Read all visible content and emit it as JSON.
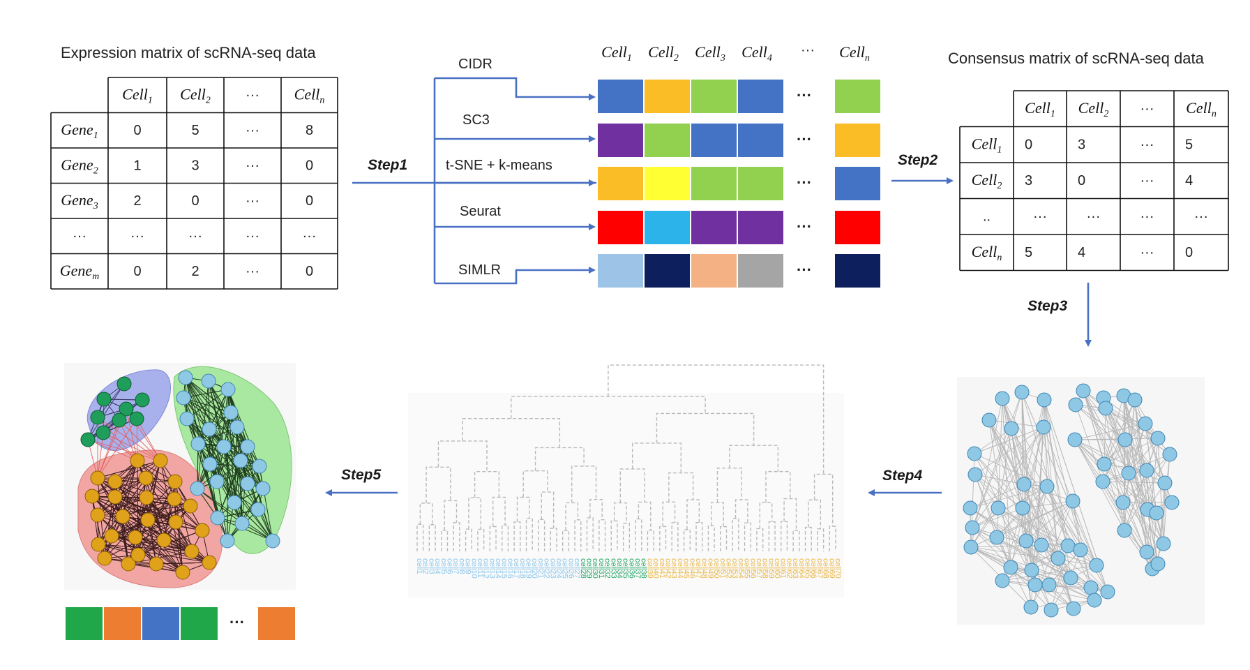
{
  "expression_matrix": {
    "title": "Expression matrix of scRNA-seq data",
    "col_headers": [
      {
        "base": "Cell",
        "sub": "1"
      },
      {
        "base": "Cell",
        "sub": "2"
      },
      {
        "base": "···",
        "sub": ""
      },
      {
        "base": "Cell",
        "sub": "n"
      }
    ],
    "rows": [
      {
        "base": "Gene",
        "sub": "1",
        "values": [
          "0",
          "5",
          "···",
          "8"
        ]
      },
      {
        "base": "Gene",
        "sub": "2",
        "values": [
          "1",
          "3",
          "···",
          "0"
        ]
      },
      {
        "base": "Gene",
        "sub": "3",
        "values": [
          "2",
          "0",
          "···",
          "0"
        ]
      },
      {
        "base": "···",
        "sub": "",
        "values": [
          "···",
          "···",
          "···",
          "···"
        ]
      },
      {
        "base": "Gene",
        "sub": "m",
        "values": [
          "0",
          "2",
          "···",
          "0"
        ]
      }
    ]
  },
  "steps": {
    "step1": "Step1",
    "step2": "Step2",
    "step3": "Step3",
    "step4": "Step4",
    "step5": "Step5"
  },
  "methods": [
    "CIDR",
    "SC3",
    "t-SNE + k-means",
    "Seurat",
    "SIMLR"
  ],
  "clustering_grid": {
    "col_headers": [
      {
        "base": "Cell",
        "sub": "1"
      },
      {
        "base": "Cell",
        "sub": "2"
      },
      {
        "base": "Cell",
        "sub": "3"
      },
      {
        "base": "Cell",
        "sub": "4"
      },
      {
        "base": "···",
        "sub": ""
      },
      {
        "base": "Cell",
        "sub": "n"
      }
    ],
    "ellipsis": "···",
    "rows": [
      [
        "#4472c4",
        "#fbbd25",
        "#92d050",
        "#4472c4",
        "#92d050"
      ],
      [
        "#7030a0",
        "#92d050",
        "#4472c4",
        "#4472c4",
        "#fbbd25"
      ],
      [
        "#fbbd25",
        "#ffff33",
        "#92d050",
        "#92d050",
        "#4472c4"
      ],
      [
        "#ff0000",
        "#2cb3ea",
        "#7030a0",
        "#7030a0",
        "#ff0000"
      ],
      [
        "#9dc3e6",
        "#0d1f5c",
        "#f4b183",
        "#a5a5a5",
        "#0d1f5c"
      ]
    ]
  },
  "consensus_matrix": {
    "title": "Consensus matrix of scRNA-seq data",
    "col_headers": [
      {
        "base": "Cell",
        "sub": "1"
      },
      {
        "base": "Cell",
        "sub": "2"
      },
      {
        "base": "···",
        "sub": ""
      },
      {
        "base": "Cell",
        "sub": "n"
      }
    ],
    "rows": [
      {
        "base": "Cell",
        "sub": "1",
        "values": [
          "0",
          "3",
          "···",
          "5"
        ]
      },
      {
        "base": "Cell",
        "sub": "2",
        "values": [
          "3",
          "0",
          "···",
          "4"
        ]
      },
      {
        "base": "..",
        "sub": "",
        "values": [
          "···",
          "···",
          "···",
          "···"
        ]
      },
      {
        "base": "Cell",
        "sub": "n",
        "values": [
          "5",
          "4",
          "···",
          "0"
        ]
      }
    ]
  },
  "result_bar": {
    "colors": [
      "#1fa74a",
      "#ec7d31",
      "#4472c4",
      "#1fa74a",
      "#ec7d31"
    ],
    "ellipsis": "···"
  },
  "palette": {
    "arrow": "#4a70c4",
    "node_light_blue": "#8fc8e4",
    "node_green": "#1e9e5a",
    "node_orange": "#e0a21a",
    "hull_blue": "#a9b1ec",
    "hull_green": "#a9e8a0",
    "hull_red": "#f2a6a3",
    "dendro_blue": "#8cc6ea",
    "dendro_green": "#2aa86a",
    "dendro_orange": "#e9b84a"
  }
}
